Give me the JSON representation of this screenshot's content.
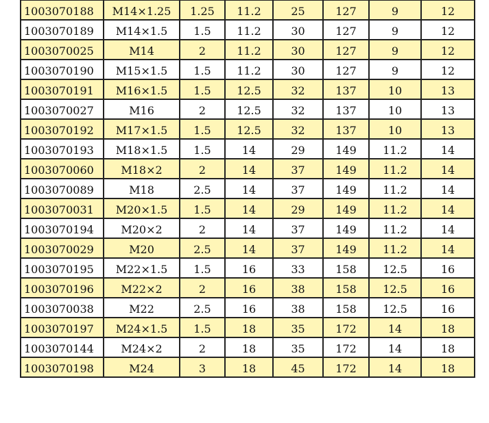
{
  "colors": {
    "highlight_row": "#fff6b8",
    "border": "#222222"
  },
  "rows": [
    [
      "1003070188",
      "M14×1.25",
      "1.25",
      "11.2",
      "25",
      "127",
      "9",
      "12"
    ],
    [
      "1003070189",
      "M14×1.5",
      "1.5",
      "11.2",
      "30",
      "127",
      "9",
      "12"
    ],
    [
      "1003070025",
      "M14",
      "2",
      "11.2",
      "30",
      "127",
      "9",
      "12"
    ],
    [
      "1003070190",
      "M15×1.5",
      "1.5",
      "11.2",
      "30",
      "127",
      "9",
      "12"
    ],
    [
      "1003070191",
      "M16×1.5",
      "1.5",
      "12.5",
      "32",
      "137",
      "10",
      "13"
    ],
    [
      "1003070027",
      "M16",
      "2",
      "12.5",
      "32",
      "137",
      "10",
      "13"
    ],
    [
      "1003070192",
      "M17×1.5",
      "1.5",
      "12.5",
      "32",
      "137",
      "10",
      "13"
    ],
    [
      "1003070193",
      "M18×1.5",
      "1.5",
      "14",
      "29",
      "149",
      "11.2",
      "14"
    ],
    [
      "1003070060",
      "M18×2",
      "2",
      "14",
      "37",
      "149",
      "11.2",
      "14"
    ],
    [
      "1003070089",
      "M18",
      "2.5",
      "14",
      "37",
      "149",
      "11.2",
      "14"
    ],
    [
      "1003070031",
      "M20×1.5",
      "1.5",
      "14",
      "29",
      "149",
      "11.2",
      "14"
    ],
    [
      "1003070194",
      "M20×2",
      "2",
      "14",
      "37",
      "149",
      "11.2",
      "14"
    ],
    [
      "1003070029",
      "M20",
      "2.5",
      "14",
      "37",
      "149",
      "11.2",
      "14"
    ],
    [
      "1003070195",
      "M22×1.5",
      "1.5",
      "16",
      "33",
      "158",
      "12.5",
      "16"
    ],
    [
      "1003070196",
      "M22×2",
      "2",
      "16",
      "38",
      "158",
      "12.5",
      "16"
    ],
    [
      "1003070038",
      "M22",
      "2.5",
      "16",
      "38",
      "158",
      "12.5",
      "16"
    ],
    [
      "1003070197",
      "M24×1.5",
      "1.5",
      "18",
      "35",
      "172",
      "14",
      "18"
    ],
    [
      "1003070144",
      "M24×2",
      "2",
      "18",
      "35",
      "172",
      "14",
      "18"
    ],
    [
      "1003070198",
      "M24",
      "3",
      "18",
      "45",
      "172",
      "14",
      "18"
    ]
  ]
}
